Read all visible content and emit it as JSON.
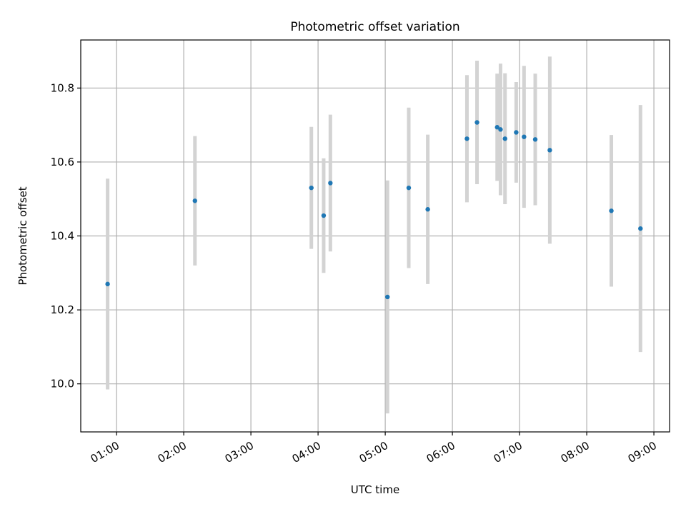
{
  "chart_data": {
    "type": "scatter",
    "title": "Photometric offset variation",
    "xlabel": "UTC time",
    "ylabel": "Photometric offset",
    "x_ticks": [
      "01:00",
      "02:00",
      "03:00",
      "04:00",
      "05:00",
      "06:00",
      "07:00",
      "08:00",
      "09:00"
    ],
    "y_ticks": [
      "10.0",
      "10.2",
      "10.4",
      "10.6",
      "10.8"
    ],
    "xlim": [
      "00:28",
      "09:14"
    ],
    "ylim": [
      9.87,
      10.93
    ],
    "grid": true,
    "colors": {
      "point": "#1f77b4",
      "errorbar": "#d3d3d3",
      "grid": "#b0b0b0"
    },
    "points": [
      {
        "time": "00:52",
        "y": 10.27,
        "err": 0.285
      },
      {
        "time": "02:10",
        "y": 10.495,
        "err": 0.175
      },
      {
        "time": "03:54",
        "y": 10.53,
        "err": 0.165
      },
      {
        "time": "04:05",
        "y": 10.455,
        "err": 0.155
      },
      {
        "time": "04:11",
        "y": 10.543,
        "err": 0.185
      },
      {
        "time": "05:02",
        "y": 10.235,
        "err": 0.315
      },
      {
        "time": "05:21",
        "y": 10.53,
        "err": 0.217
      },
      {
        "time": "05:38",
        "y": 10.472,
        "err": 0.202
      },
      {
        "time": "06:13",
        "y": 10.663,
        "err": 0.172
      },
      {
        "time": "06:22",
        "y": 10.707,
        "err": 0.167
      },
      {
        "time": "06:40",
        "y": 10.694,
        "err": 0.145
      },
      {
        "time": "06:43",
        "y": 10.688,
        "err": 0.178
      },
      {
        "time": "06:47",
        "y": 10.663,
        "err": 0.177
      },
      {
        "time": "06:57",
        "y": 10.68,
        "err": 0.136
      },
      {
        "time": "07:04",
        "y": 10.668,
        "err": 0.192
      },
      {
        "time": "07:14",
        "y": 10.661,
        "err": 0.178
      },
      {
        "time": "07:27",
        "y": 10.632,
        "err": 0.253
      },
      {
        "time": "08:22",
        "y": 10.468,
        "err": 0.205
      },
      {
        "time": "08:48",
        "y": 10.42,
        "err": 0.334
      }
    ]
  }
}
